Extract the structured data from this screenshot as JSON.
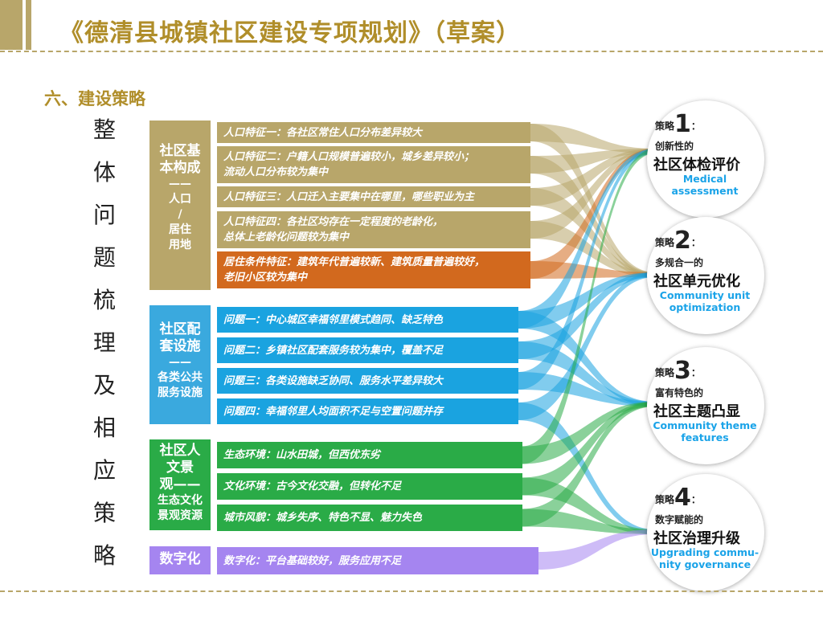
{
  "header": {
    "title": "《德清县城镇社区建设专项规划》（草案）"
  },
  "section_title": "六、建设策略",
  "vertical_title": [
    "整",
    "体",
    "问",
    "题",
    "梳",
    "理",
    "及",
    "相",
    "应",
    "策",
    "略"
  ],
  "colors": {
    "gold": "#b8a66a",
    "orange": "#d2691e",
    "blue": "#1aa3e0",
    "green": "#2aab47",
    "purple": "#a585f0"
  },
  "categories": [
    {
      "heading": [
        "社区基",
        "本构成"
      ],
      "sub": [
        "——",
        "人口",
        "/",
        "居住",
        "用地"
      ]
    },
    {
      "heading": [
        "社区配",
        "套设施"
      ],
      "sub": [
        "——",
        "各类公共",
        "服务设施"
      ]
    },
    {
      "heading": [
        "社区人",
        "文景",
        "观——"
      ],
      "sub": [
        "生态文化",
        "景观资源"
      ]
    },
    {
      "heading": [
        "数字化"
      ],
      "sub": []
    }
  ],
  "rows": [
    {
      "lines": [
        "人口特征一：各社区常住人口分布差异较大"
      ]
    },
    {
      "lines": [
        "人口特征二：户籍人口规模普遍较小，城乡差异较小；",
        "流动人口分布较为集中"
      ]
    },
    {
      "lines": [
        "人口特征三：人口迁入主要集中在哪里，哪些职业为主"
      ]
    },
    {
      "lines": [
        "人口特征四：各社区均存在一定程度的老龄化，",
        "总体上老龄化问题较为集中"
      ]
    },
    {
      "lines": [
        "居住条件特征：建筑年代普遍较新、建筑质量普遍较好，",
        "老旧小区较为集中"
      ]
    },
    {
      "lines": [
        "问题一：中心城区幸福邻里模式趋同、缺乏特色"
      ]
    },
    {
      "lines": [
        "问题二：乡镇社区配套服务较为集中，覆盖不足"
      ]
    },
    {
      "lines": [
        "问题三：各类设施缺乏协同、服务水平差异较大"
      ]
    },
    {
      "lines": [
        "问题四：幸福邻里人均面积不足与空置问题并存"
      ]
    },
    {
      "lines": [
        "生态环境：山水田城，但西优东劣"
      ]
    },
    {
      "lines": [
        "文化环境：古今文化交融，但转化不足"
      ]
    },
    {
      "lines": [
        "城市风貌：城乡失序、特色不显、魅力失色"
      ]
    },
    {
      "lines": [
        "数字化：平台基础较好，服务应用不足"
      ]
    }
  ],
  "strategies": [
    {
      "prefix": "策略",
      "num": "1",
      "colon": "：",
      "sub": "创新性的",
      "main": "社区体检评价",
      "en": [
        "Medical assessment"
      ]
    },
    {
      "prefix": "策略",
      "num": "2",
      "colon": "：",
      "sub": "多规合一的",
      "main": "社区单元优化",
      "en": [
        "Community unit",
        "optimization"
      ]
    },
    {
      "prefix": "策略",
      "num": "3",
      "colon": "：",
      "sub": "富有特色的",
      "main": "社区主题凸显",
      "en": [
        "Community theme",
        "features"
      ]
    },
    {
      "prefix": "策略",
      "num": "4",
      "colon": "：",
      "sub": "数字赋能的",
      "main": "社区治理升级",
      "en": [
        "Upgrading commu-",
        "nity governance"
      ]
    }
  ]
}
